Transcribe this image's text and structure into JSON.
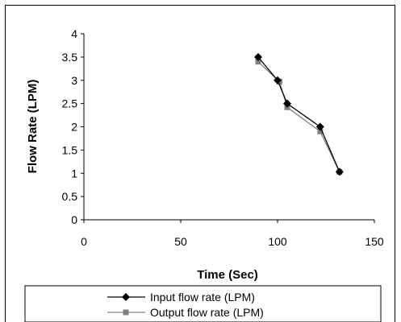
{
  "chart_data": {
    "type": "line",
    "title": "",
    "xlabel": "Time (Sec)",
    "ylabel": "Flow Rate (LPM)",
    "xlim": [
      0,
      150
    ],
    "ylim": [
      0,
      4
    ],
    "x_ticks": [
      0,
      50,
      100,
      150
    ],
    "y_ticks": [
      "0",
      "0.5",
      "1",
      "1.5",
      "2",
      "2.5",
      "3",
      "3.5",
      "4"
    ],
    "grid": false,
    "legend_position": "bottom",
    "series": [
      {
        "name": "Input flow rate (LPM)",
        "color": "#000000",
        "marker": "diamond",
        "x": [
          90,
          100,
          105,
          122,
          132
        ],
        "y": [
          3.5,
          3.0,
          2.5,
          2.0,
          1.03
        ]
      },
      {
        "name": "Output flow rate (LPM)",
        "color": "#808080",
        "marker": "square",
        "x": [
          90,
          101,
          105,
          122,
          132
        ],
        "y": [
          3.4,
          2.97,
          2.42,
          1.9,
          1.03
        ]
      }
    ]
  }
}
